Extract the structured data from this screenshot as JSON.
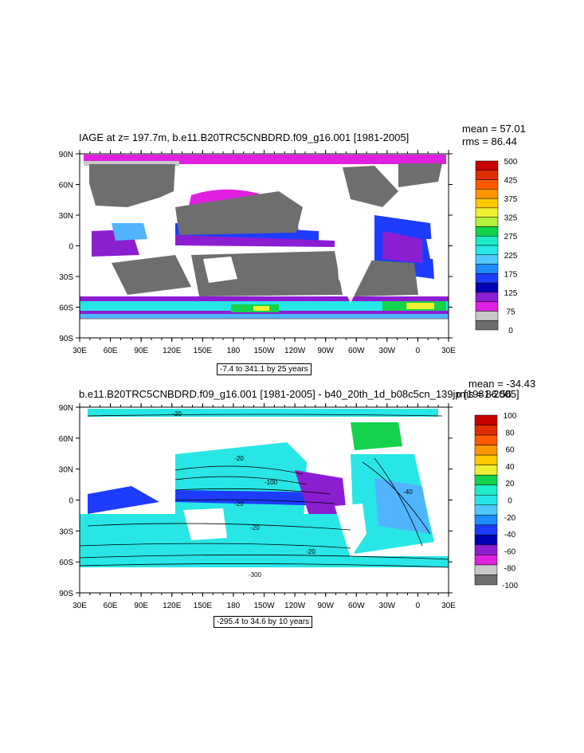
{
  "colors": {
    "land": "#6e6e6e",
    "ice": "#c8c8c8",
    "magenta": "#e020e0",
    "purple": "#8c1ed2",
    "blue": "#1e3cff",
    "cyan": "#28e6e6",
    "lightblue": "#50b4ff",
    "green": "#14d24b",
    "yellow": "#f0f032",
    "contour": "#000000"
  },
  "panel1": {
    "title": "IAGE at z= 197.7m, b.e11.B20TRC5CNBDRD.f09_g16.001 [1981-2005]",
    "mean": "mean = 57.01",
    "rms": "rms = 86.44",
    "range": "-7.4 to 341.1 by 25 years",
    "lat_labels": [
      "90N",
      "60N",
      "30N",
      "0",
      "30S",
      "60S",
      "90S"
    ],
    "lon_labels": [
      "30E",
      "60E",
      "90E",
      "120E",
      "150E",
      "180",
      "150W",
      "120W",
      "90W",
      "60W",
      "30W",
      "0",
      "30E"
    ],
    "colorbar": {
      "labels": [
        "500",
        "425",
        "375",
        "325",
        "275",
        "225",
        "175",
        "125",
        "75",
        "0"
      ],
      "colors": [
        "#c80000",
        "#e02d00",
        "#ff5a00",
        "#ff9600",
        "#ffc800",
        "#f0f032",
        "#b4f03c",
        "#14d24b",
        "#1eecc8",
        "#28e6e6",
        "#50c8ff",
        "#1e8cff",
        "#1e3cff",
        "#0000b4",
        "#8c1ed2",
        "#e020e0",
        "#c8c8c8",
        "#6e6e6e"
      ]
    }
  },
  "panel2": {
    "title": "b.e11.B20TRC5CNBDRD.f09_g16.001 [1981-2005] - b40_20th_1d_b08c5cn_139jp [1981-2005]",
    "mean": "mean = -34.43",
    "rms": "rms = 86.56",
    "range": "-295.4 to 34.6 by 10 years",
    "lat_labels": [
      "90N",
      "60N",
      "30N",
      "0",
      "30S",
      "60S",
      "90S"
    ],
    "lon_labels": [
      "30E",
      "60E",
      "90E",
      "120E",
      "150E",
      "180",
      "150W",
      "120W",
      "90W",
      "60W",
      "30W",
      "0",
      "30E"
    ],
    "contour_labels": [
      "-20",
      "-20",
      "-100",
      "-20",
      "-20",
      "-40",
      "-20",
      "-300"
    ],
    "colorbar": {
      "labels": [
        "100",
        "80",
        "60",
        "40",
        "20",
        "0",
        "-20",
        "-40",
        "-60",
        "-80",
        "-100"
      ],
      "colors": [
        "#c80000",
        "#e02d00",
        "#ff5a00",
        "#ff9600",
        "#ffc800",
        "#f0f032",
        "#14d24b",
        "#1eecc8",
        "#28e6e6",
        "#50c8ff",
        "#1e8cff",
        "#1e3cff",
        "#0000b4",
        "#8c1ed2",
        "#e020e0",
        "#c8c8c8",
        "#6e6e6e"
      ]
    }
  }
}
